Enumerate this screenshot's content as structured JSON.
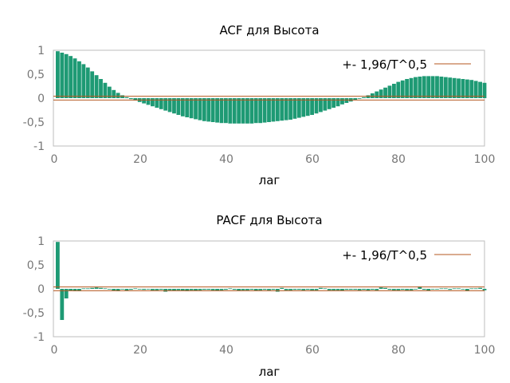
{
  "chart_data": [
    {
      "type": "bar",
      "title": "ACF для Высота",
      "xlabel": "лаг",
      "ylabel": "",
      "xlim": [
        0,
        100
      ],
      "ylim": [
        -1,
        1
      ],
      "xticks": [
        "0",
        "20",
        "40",
        "60",
        "80",
        "100"
      ],
      "yticks": [
        "1",
        "0,5",
        "0",
        "-0,5",
        "-1"
      ],
      "legend": "+- 1,96/T^0,5",
      "legend_position": "top-right",
      "confidence_band": 0.04,
      "bar_color": "#1e9a74",
      "band_color": "#b5571f",
      "lags": [
        1,
        2,
        3,
        4,
        5,
        6,
        7,
        8,
        9,
        10,
        11,
        12,
        13,
        14,
        15,
        16,
        17,
        18,
        19,
        20,
        21,
        22,
        23,
        24,
        25,
        26,
        27,
        28,
        29,
        30,
        31,
        32,
        33,
        34,
        35,
        36,
        37,
        38,
        39,
        40,
        41,
        42,
        43,
        44,
        45,
        46,
        47,
        48,
        49,
        50,
        51,
        52,
        53,
        54,
        55,
        56,
        57,
        58,
        59,
        60,
        61,
        62,
        63,
        64,
        65,
        66,
        67,
        68,
        69,
        70,
        71,
        72,
        73,
        74,
        75,
        76,
        77,
        78,
        79,
        80,
        81,
        82,
        83,
        84,
        85,
        86,
        87,
        88,
        89,
        90,
        91,
        92,
        93,
        94,
        95,
        96,
        97,
        98,
        99,
        100
      ],
      "values": [
        0.98,
        0.95,
        0.92,
        0.88,
        0.83,
        0.77,
        0.71,
        0.64,
        0.56,
        0.48,
        0.4,
        0.32,
        0.24,
        0.17,
        0.11,
        0.06,
        0.02,
        -0.02,
        -0.05,
        -0.08,
        -0.11,
        -0.14,
        -0.17,
        -0.2,
        -0.23,
        -0.26,
        -0.29,
        -0.32,
        -0.35,
        -0.38,
        -0.4,
        -0.42,
        -0.44,
        -0.46,
        -0.48,
        -0.49,
        -0.5,
        -0.51,
        -0.52,
        -0.52,
        -0.53,
        -0.53,
        -0.53,
        -0.53,
        -0.53,
        -0.53,
        -0.52,
        -0.52,
        -0.51,
        -0.5,
        -0.49,
        -0.48,
        -0.47,
        -0.46,
        -0.45,
        -0.43,
        -0.41,
        -0.39,
        -0.37,
        -0.35,
        -0.32,
        -0.29,
        -0.26,
        -0.23,
        -0.2,
        -0.17,
        -0.13,
        -0.1,
        -0.07,
        -0.04,
        -0.01,
        0.02,
        0.06,
        0.1,
        0.14,
        0.18,
        0.22,
        0.26,
        0.3,
        0.34,
        0.37,
        0.4,
        0.42,
        0.44,
        0.45,
        0.46,
        0.46,
        0.46,
        0.46,
        0.45,
        0.44,
        0.43,
        0.42,
        0.41,
        0.4,
        0.39,
        0.38,
        0.36,
        0.34,
        0.32
      ]
    },
    {
      "type": "bar",
      "title": "PACF для Высота",
      "xlabel": "лаг",
      "ylabel": "",
      "xlim": [
        0,
        100
      ],
      "ylim": [
        -1,
        1
      ],
      "xticks": [
        "0",
        "20",
        "40",
        "60",
        "80",
        "100"
      ],
      "yticks": [
        "1",
        "0,5",
        "0",
        "-0,5",
        "-1"
      ],
      "legend": "+- 1,96/T^0,5",
      "legend_position": "top-right",
      "confidence_band": 0.04,
      "bar_color": "#1e9a74",
      "band_color": "#b5571f",
      "lags": [
        1,
        2,
        3,
        4,
        5,
        6,
        7,
        8,
        9,
        10,
        11,
        12,
        13,
        14,
        15,
        16,
        17,
        18,
        19,
        20,
        21,
        22,
        23,
        24,
        25,
        26,
        27,
        28,
        29,
        30,
        31,
        32,
        33,
        34,
        35,
        36,
        37,
        38,
        39,
        40,
        41,
        42,
        43,
        44,
        45,
        46,
        47,
        48,
        49,
        50,
        51,
        52,
        53,
        54,
        55,
        56,
        57,
        58,
        59,
        60,
        61,
        62,
        63,
        64,
        65,
        66,
        67,
        68,
        69,
        70,
        71,
        72,
        73,
        74,
        75,
        76,
        77,
        78,
        79,
        80,
        81,
        82,
        83,
        84,
        85,
        86,
        87,
        88,
        89,
        90,
        91,
        92,
        93,
        94,
        95,
        96,
        97,
        98,
        99,
        100
      ],
      "values": [
        0.98,
        -0.65,
        -0.2,
        -0.04,
        -0.05,
        -0.05,
        0.01,
        0.01,
        0.02,
        0.03,
        0.02,
        0.01,
        -0.01,
        -0.04,
        -0.05,
        -0.01,
        -0.04,
        -0.02,
        0.01,
        0.0,
        -0.02,
        -0.01,
        -0.03,
        -0.03,
        -0.02,
        -0.06,
        -0.03,
        -0.04,
        -0.03,
        -0.04,
        -0.05,
        -0.03,
        -0.04,
        -0.03,
        -0.02,
        -0.02,
        -0.03,
        -0.04,
        -0.03,
        -0.02,
        0.01,
        -0.02,
        -0.04,
        -0.03,
        -0.03,
        -0.02,
        -0.04,
        -0.03,
        -0.02,
        -0.03,
        -0.02,
        -0.06,
        0.02,
        -0.03,
        -0.03,
        -0.02,
        -0.02,
        -0.03,
        -0.02,
        -0.03,
        -0.03,
        0.02,
        0.01,
        -0.03,
        -0.03,
        -0.03,
        -0.04,
        -0.02,
        -0.02,
        -0.02,
        -0.03,
        -0.02,
        -0.03,
        -0.02,
        -0.03,
        0.03,
        0.02,
        -0.02,
        -0.03,
        -0.03,
        -0.02,
        -0.03,
        -0.03,
        -0.01,
        0.05,
        -0.02,
        -0.04,
        -0.01,
        -0.01,
        0.01,
        0.01,
        -0.02,
        0.01,
        0.01,
        -0.01,
        -0.05,
        0.01,
        0.01,
        0.02,
        -0.03
      ]
    }
  ]
}
